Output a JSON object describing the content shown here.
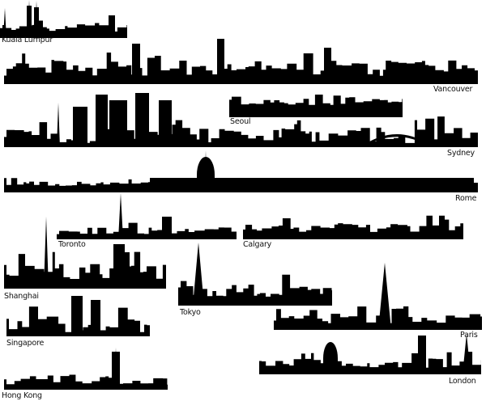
{
  "colors": {
    "silhouette": "#000000",
    "background": "#ffffff"
  },
  "cities": [
    {
      "id": "kuala-lumpur",
      "label": "Kuala Lumpur"
    },
    {
      "id": "vancouver",
      "label": "Vancouver"
    },
    {
      "id": "seoul",
      "label": "Seoul"
    },
    {
      "id": "sydney",
      "label": "Sydney"
    },
    {
      "id": "rome",
      "label": "Rome"
    },
    {
      "id": "toronto",
      "label": "Toronto"
    },
    {
      "id": "calgary",
      "label": "Calgary"
    },
    {
      "id": "shanghai",
      "label": "Shanghai"
    },
    {
      "id": "tokyo",
      "label": "Tokyo"
    },
    {
      "id": "paris",
      "label": "Paris"
    },
    {
      "id": "singapore",
      "label": "Singapore"
    },
    {
      "id": "london",
      "label": "London"
    },
    {
      "id": "hong-kong",
      "label": "Hong Kong"
    }
  ]
}
